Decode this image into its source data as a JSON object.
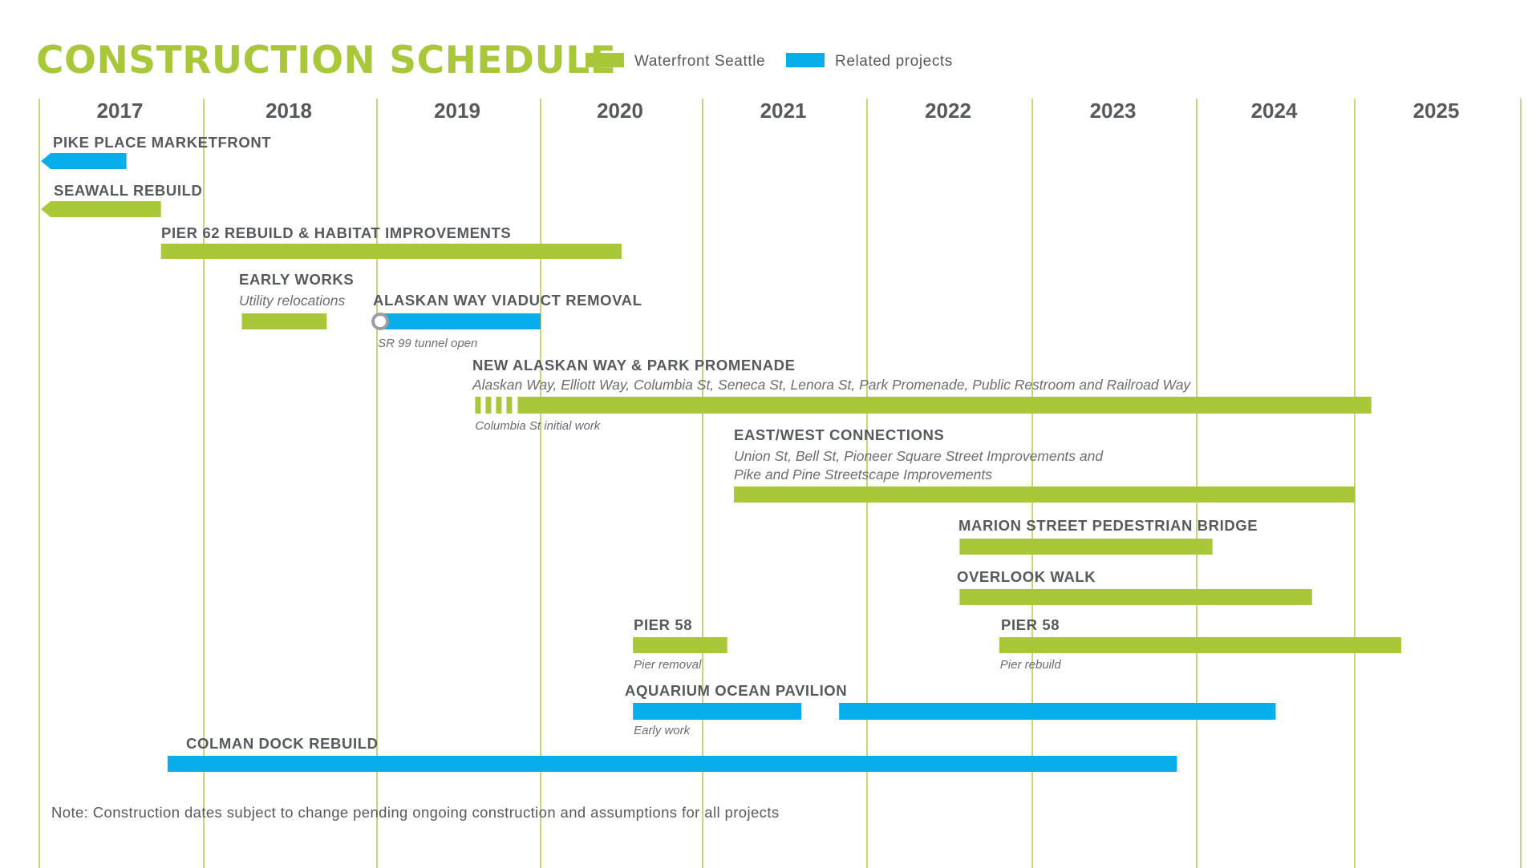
{
  "colors": {
    "green": "#a8c83a",
    "blue": "#08aeea",
    "grid": "#c3d67e",
    "text": "#555a5e",
    "muted": "#6a6e71"
  },
  "chart_data": {
    "type": "gantt",
    "title": "CONSTRUCTION SCHEDULE",
    "legend": [
      {
        "name": "Waterfront Seattle",
        "color": "green"
      },
      {
        "name": "Related projects",
        "color": "blue"
      }
    ],
    "years": [
      "2017",
      "2018",
      "2019",
      "2020",
      "2021",
      "2022",
      "2023",
      "2024",
      "2025"
    ],
    "x_range": [
      2017,
      2026
    ],
    "tasks": [
      {
        "label": "PIKE PLACE MARKETFRONT",
        "color": "blue",
        "start": 2017.03,
        "end": 2017.53,
        "arrow_left": true
      },
      {
        "label": "SEAWALL REBUILD",
        "color": "green",
        "start": 2017.03,
        "end": 2017.74,
        "arrow_left": true
      },
      {
        "label": "PIER 62 REBUILD & HABITAT IMPROVEMENTS",
        "color": "green",
        "start": 2017.74,
        "end": 2020.5
      },
      {
        "label": "EARLY WORKS",
        "subtitle": "Utility relocations",
        "color": "green",
        "start": 2018.22,
        "end": 2018.71
      },
      {
        "label": "ALASKAN WAY VIADUCT REMOVAL",
        "color": "blue",
        "start": 2019.0,
        "end": 2020.0,
        "milestone": 2019.02,
        "note": "SR 99 tunnel open"
      },
      {
        "label": "NEW ALASKAN WAY & PARK PROMENADE",
        "subtitle": "Alaskan Way, Elliott Way, Columbia St, Seneca St, Lenora St, Park Promenade, Public Restroom and Railroad Way",
        "color": "green",
        "start": 2019.86,
        "end": 2025.1,
        "dashed_start": 2019.6,
        "note": "Columbia St initial work"
      },
      {
        "label": "EAST/WEST CONNECTIONS",
        "subtitle_lines": [
          "Union St, Bell St, Pioneer Square Street Improvements and",
          "Pike and Pine Streetscape Improvements"
        ],
        "color": "green",
        "start": 2021.19,
        "end": 2025.0
      },
      {
        "label": "MARION STREET PEDESTRIAN BRIDGE",
        "color": "green",
        "start": 2022.56,
        "end": 2024.1
      },
      {
        "label": "OVERLOOK WALK",
        "color": "green",
        "start": 2022.56,
        "end": 2024.73
      },
      {
        "label": "PIER 58",
        "color": "green",
        "start": 2020.57,
        "end": 2021.15,
        "note": "Pier removal"
      },
      {
        "label": "PIER 58",
        "color": "green",
        "start": 2022.8,
        "end": 2025.28,
        "note": "Pier rebuild"
      },
      {
        "label": "AQUARIUM OCEAN PAVILION",
        "color": "blue",
        "start": 2020.57,
        "end": 2021.6,
        "note": "Early work"
      },
      {
        "label": "",
        "color": "blue",
        "start": 2021.83,
        "end": 2024.5
      },
      {
        "label": "COLMAN DOCK REBUILD",
        "color": "blue",
        "start": 2017.78,
        "end": 2023.88
      }
    ]
  },
  "footnote": "Note: Construction dates subject to change pending ongoing construction and assumptions for all projects"
}
